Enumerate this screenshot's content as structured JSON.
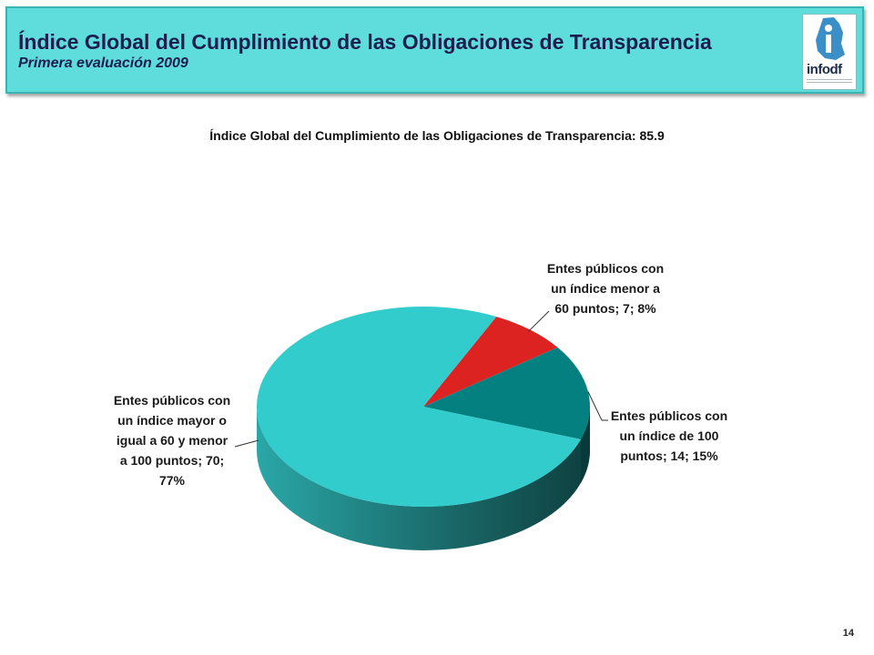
{
  "header": {
    "title": "Índice Global del Cumplimiento de las Obligaciones de Transparencia",
    "subtitle": "Primera evaluación 2009",
    "logo_text": "infodf"
  },
  "page_number": "14",
  "colors": {
    "header_bg": "#5fdcdc",
    "slice_mayor": "#33cccc",
    "slice_menor": "#dd2222",
    "slice_cien": "#058080"
  },
  "chart_data": {
    "type": "pie",
    "title": "Índice Global del Cumplimiento de las Obligaciones de Transparencia: 85.9",
    "style": "3d",
    "slices": [
      {
        "label": "Entes públicos con un índice menor a 60 puntos",
        "value": 7,
        "percent": 8,
        "color": "#dd2222",
        "label_lines": [
          "Entes públicos con",
          "un índice menor a",
          "60 puntos; 7; 8%"
        ]
      },
      {
        "label": "Entes públicos con un índice de 100 puntos",
        "value": 14,
        "percent": 15,
        "color": "#058080",
        "label_lines": [
          "Entes públicos con",
          "un índice de 100",
          "puntos; 14; 15%"
        ]
      },
      {
        "label": "Entes públicos con un índice mayor o igual a 60 y menor a 100 puntos",
        "value": 70,
        "percent": 77,
        "color": "#33cccc",
        "label_lines": [
          "Entes públicos con",
          "un índice mayor o",
          "igual a 60 y menor",
          "a 100 puntos; 70;",
          "77%"
        ]
      }
    ]
  }
}
